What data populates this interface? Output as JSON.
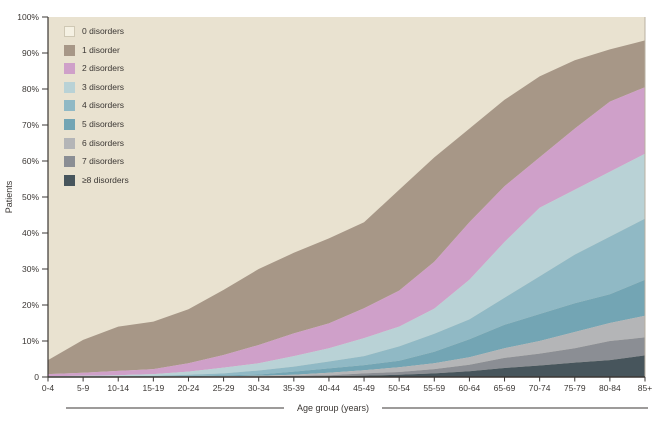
{
  "figure": {
    "y_axis_label": "Patients",
    "x_axis_label": "Age group (years)"
  },
  "colors": {
    "plot_background": "#e9e2d0",
    "axis": "#3b3734",
    "right_edge": "#b9b0a0",
    "legend_swatch_0_fill": "#f5f1e3",
    "legend_swatch_0_border": "#cfc8b4"
  },
  "y_ticks": [
    "100%",
    "90%",
    "80%",
    "70%",
    "60%",
    "50%",
    "40%",
    "30%",
    "20%",
    "10%",
    "0"
  ],
  "legend": {
    "items": [
      {
        "label": "0 disorders",
        "color": "#f5f1e3",
        "border": "#cfc8b4"
      },
      {
        "label": "1 disorder",
        "color": "#a79787",
        "border": ""
      },
      {
        "label": "2 disorders",
        "color": "#cfa0c9",
        "border": ""
      },
      {
        "label": "3 disorders",
        "color": "#b9d2d6",
        "border": ""
      },
      {
        "label": "4 disorders",
        "color": "#90b9c5",
        "border": ""
      },
      {
        "label": "5 disorders",
        "color": "#73a5b4",
        "border": ""
      },
      {
        "label": "6 disorders",
        "color": "#b4b5b7",
        "border": ""
      },
      {
        "label": "7 disorders",
        "color": "#8b8e94",
        "border": ""
      },
      {
        "label": "≥8 disorders",
        "color": "#47555c",
        "border": ""
      }
    ]
  },
  "chart_data": {
    "type": "area",
    "stacked": true,
    "percent_stacked": true,
    "title": "",
    "xlabel": "Age group (years)",
    "ylabel": "Patients",
    "ylim": [
      0,
      100
    ],
    "unit": "%",
    "grid": false,
    "legend_position": "top-left-inside",
    "stack_order_top_to_bottom": [
      "0 disorders",
      "1 disorder",
      "2 disorders",
      "3 disorders",
      "4 disorders",
      "5 disorders",
      "6 disorders",
      "7 disorders",
      "≥8 disorders"
    ],
    "categories": [
      "0-4",
      "5-9",
      "10-14",
      "15-19",
      "20-24",
      "25-29",
      "30-34",
      "35-39",
      "40-44",
      "45-49",
      "50-54",
      "55-59",
      "60-64",
      "65-69",
      "70-74",
      "75-79",
      "80-84",
      "85+"
    ],
    "series": [
      {
        "name": "0 disorders",
        "color": "#e9e2d0",
        "values": [
          95.3,
          89.7,
          86.0,
          84.6,
          81.2,
          75.8,
          70.0,
          65.5,
          61.5,
          57.0,
          48.0,
          39.0,
          31.0,
          23.0,
          16.5,
          12.0,
          9.0,
          6.5
        ]
      },
      {
        "name": "1 disorder",
        "color": "#a79787",
        "values": [
          3.9,
          9.1,
          12.3,
          13.2,
          15.0,
          18.1,
          21.1,
          22.4,
          23.6,
          23.9,
          28.0,
          29.0,
          26.0,
          24.0,
          22.5,
          19.0,
          14.5,
          13.0
        ]
      },
      {
        "name": "2 disorders",
        "color": "#cfa0c9",
        "values": [
          0.6,
          0.85,
          1.2,
          1.4,
          2.3,
          3.5,
          5.1,
          6.3,
          6.9,
          8.3,
          10.0,
          13.0,
          16.0,
          15.5,
          14.0,
          17.0,
          19.5,
          18.5
        ]
      },
      {
        "name": "3 disorders",
        "color": "#b9d2d6",
        "values": [
          0.15,
          0.25,
          0.3,
          0.5,
          0.9,
          1.6,
          2.0,
          2.9,
          3.7,
          5.0,
          5.5,
          7.0,
          11.0,
          15.5,
          19.0,
          18.0,
          18.0,
          18.0
        ]
      },
      {
        "name": "4 disorders",
        "color": "#90b9c5",
        "values": [
          0.05,
          0.05,
          0.1,
          0.15,
          0.35,
          0.55,
          1.1,
          1.4,
          1.9,
          2.5,
          4.0,
          5.0,
          5.5,
          7.5,
          10.5,
          13.5,
          16.0,
          17.0
        ]
      },
      {
        "name": "5 disorders",
        "color": "#73a5b4",
        "values": [
          0.0,
          0.05,
          0.05,
          0.07,
          0.13,
          0.25,
          0.35,
          0.9,
          1.2,
          1.4,
          1.8,
          3.2,
          5.0,
          6.5,
          7.5,
          8.0,
          8.0,
          10.0
        ]
      },
      {
        "name": "6 disorders",
        "color": "#b4b5b7",
        "values": [
          0.0,
          0.0,
          0.05,
          0.05,
          0.06,
          0.1,
          0.17,
          0.3,
          0.7,
          0.9,
          1.3,
          1.6,
          2.1,
          2.7,
          3.5,
          4.5,
          5.0,
          6.0
        ]
      },
      {
        "name": "7 disorders",
        "color": "#8b8e94",
        "values": [
          0.0,
          0.0,
          0.0,
          0.03,
          0.04,
          0.05,
          0.1,
          0.15,
          0.25,
          0.6,
          0.8,
          1.2,
          1.8,
          2.8,
          3.3,
          4.0,
          5.3,
          5.0
        ]
      },
      {
        "name": "≥8 disorders",
        "color": "#47555c",
        "values": [
          0.0,
          0.0,
          0.0,
          0.0,
          0.02,
          0.05,
          0.08,
          0.15,
          0.25,
          0.4,
          0.6,
          1.0,
          1.6,
          2.5,
          3.2,
          4.0,
          4.7,
          6.0
        ]
      }
    ],
    "cumulative_at_least_percent": {
      "1": [
        4.7,
        10.3,
        14.0,
        15.4,
        18.8,
        24.2,
        30.0,
        34.5,
        38.5,
        43.0,
        52.0,
        61.0,
        69.0,
        77.0,
        83.5,
        88.0,
        91.0,
        93.5
      ],
      "2": [
        0.8,
        1.2,
        1.7,
        2.2,
        3.8,
        6.1,
        8.9,
        12.1,
        14.9,
        19.1,
        24.0,
        32.0,
        43.0,
        53.0,
        61.0,
        69.0,
        76.5,
        80.5
      ],
      "3": [
        0.2,
        0.35,
        0.5,
        0.8,
        1.5,
        2.6,
        3.8,
        5.8,
        8.0,
        10.8,
        14.0,
        19.0,
        27.0,
        37.5,
        47.0,
        52.0,
        57.0,
        62.0
      ],
      "4": [
        0.05,
        0.1,
        0.2,
        0.3,
        0.6,
        1.0,
        1.8,
        2.9,
        4.3,
        5.8,
        8.5,
        12.0,
        16.0,
        22.0,
        28.0,
        34.0,
        39.0,
        44.0
      ],
      "5": [
        0.0,
        0.05,
        0.1,
        0.15,
        0.25,
        0.45,
        0.7,
        1.5,
        2.4,
        3.3,
        4.5,
        7.0,
        10.5,
        14.5,
        17.5,
        20.5,
        23.0,
        27.0
      ],
      "6": [
        0.0,
        0.0,
        0.05,
        0.08,
        0.12,
        0.2,
        0.35,
        0.6,
        1.2,
        1.9,
        2.7,
        3.8,
        5.5,
        8.0,
        10.0,
        12.5,
        15.0,
        17.0
      ],
      "7": [
        0.0,
        0.0,
        0.0,
        0.03,
        0.06,
        0.1,
        0.18,
        0.3,
        0.5,
        1.0,
        1.4,
        2.2,
        3.4,
        5.3,
        6.5,
        8.0,
        10.0,
        11.0
      ],
      "8": [
        0.0,
        0.0,
        0.0,
        0.0,
        0.02,
        0.05,
        0.08,
        0.15,
        0.25,
        0.4,
        0.6,
        1.0,
        1.6,
        2.5,
        3.2,
        4.0,
        4.7,
        6.0
      ]
    }
  }
}
